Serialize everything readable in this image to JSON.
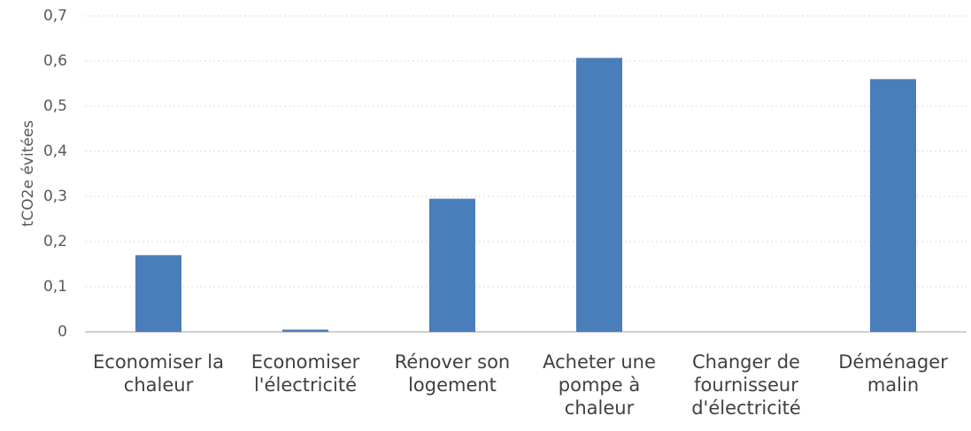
{
  "chart_data": {
    "type": "bar",
    "y_label": "tCO2e évitées",
    "categories": [
      "Economiser la chaleur",
      "Economiser l'électricité",
      "Rénover son logement",
      "Acheter une pompe à chaleur",
      "Changer de fournisseur d'électricité",
      "Déménager malin"
    ],
    "values": [
      0.17,
      0.005,
      0.295,
      0.607,
      0,
      0.56
    ],
    "color": "#4a7ebb",
    "ylim": [
      0,
      0.7
    ],
    "yticks": [
      0,
      {
        "value": 0.1,
        "label": "0,1"
      },
      {
        "value": 0.2,
        "label": "0,2"
      },
      {
        "value": 0.3,
        "label": "0,3"
      },
      {
        "value": 0.4,
        "label": "0,4"
      },
      {
        "value": 0.5,
        "label": "0,5"
      },
      {
        "value": 0.6,
        "label": "0,6"
      },
      {
        "value": 0.7,
        "label": "0,7"
      }
    ],
    "grid": true
  }
}
